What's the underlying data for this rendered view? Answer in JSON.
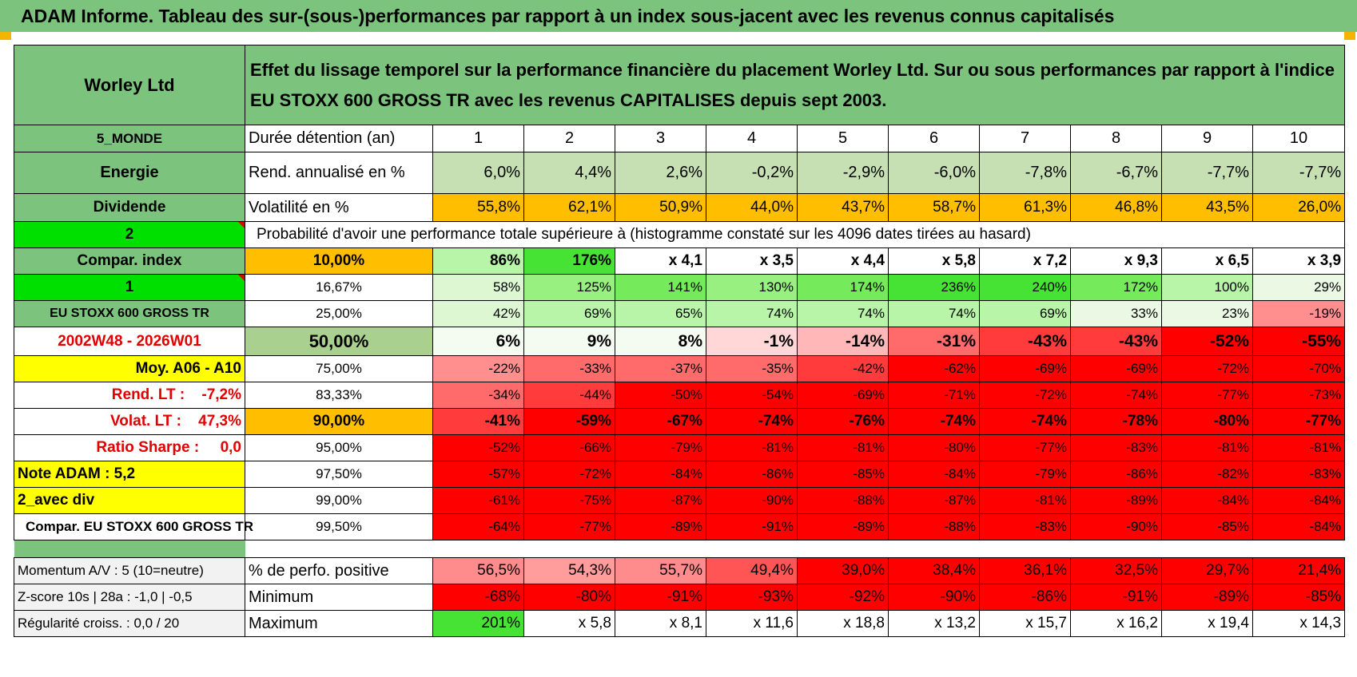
{
  "title": "ADAM Informe. Tableau des sur-(sous-)performances par rapport à un index sous-jacent avec les revenus connus capitalisés",
  "header": {
    "stock": "Worley Ltd",
    "description_line1": "Effet du lissage temporel sur la performance financière du placement Worley Ltd. Sur ou sous performances par rapport à l'indice",
    "description_line2": "EU STOXX 600 GROSS TR avec les revenus CAPITALISES depuis sept 2003."
  },
  "sidebar": {
    "region": "5_MONDE",
    "sector": "Energie",
    "type": "Dividende",
    "sel1": "2",
    "compar_label": "Compar. index",
    "sel2": "1",
    "index_name": "EU STOXX 600 GROSS TR",
    "period": "2002W48 - 2026W01",
    "moy": "Moy. A06 - A10",
    "rend_lt": "Rend. LT :    -7,2%",
    "volat_lt": "Volat. LT :    47,3%",
    "sharpe": "Ratio Sharpe :     0,0",
    "note": "Note ADAM : 5,2",
    "avec_div": "2_avec div",
    "compar_footer": "Compar. EU STOXX 600 GROSS TR"
  },
  "table": {
    "duration_label": "Durée détention (an)",
    "years": [
      "1",
      "2",
      "3",
      "4",
      "5",
      "6",
      "7",
      "8",
      "9",
      "10"
    ],
    "rend_label": "Rend. annualisé en %",
    "rend": [
      "6,0%",
      "4,4%",
      "2,6%",
      "-0,2%",
      "-2,9%",
      "-6,0%",
      "-7,8%",
      "-6,7%",
      "-7,7%",
      "-7,7%"
    ],
    "vol_label": "Volatilité en %",
    "vol": [
      "55,8%",
      "62,1%",
      "50,9%",
      "44,0%",
      "43,7%",
      "58,7%",
      "61,3%",
      "46,8%",
      "43,5%",
      "26,0%"
    ],
    "prob_label": "Probabilité d'avoir une performance totale supérieure à (histogramme constaté sur les 4096 dates tirées au hasard)",
    "quantiles": [
      {
        "p": "10,00%",
        "v": [
          "86%",
          "176%",
          "x 4,1",
          "x 3,5",
          "x 4,4",
          "x 5,8",
          "x 7,2",
          "x 9,3",
          "x 6,5",
          "x 3,9"
        ]
      },
      {
        "p": "16,67%",
        "v": [
          "58%",
          "125%",
          "141%",
          "130%",
          "174%",
          "236%",
          "240%",
          "172%",
          "100%",
          "29%"
        ]
      },
      {
        "p": "25,00%",
        "v": [
          "42%",
          "69%",
          "65%",
          "74%",
          "74%",
          "74%",
          "69%",
          "33%",
          "23%",
          "-19%"
        ]
      },
      {
        "p": "50,00%",
        "v": [
          "6%",
          "9%",
          "8%",
          "-1%",
          "-14%",
          "-31%",
          "-43%",
          "-43%",
          "-52%",
          "-55%"
        ]
      },
      {
        "p": "75,00%",
        "v": [
          "-22%",
          "-33%",
          "-37%",
          "-35%",
          "-42%",
          "-62%",
          "-69%",
          "-69%",
          "-72%",
          "-70%"
        ]
      },
      {
        "p": "83,33%",
        "v": [
          "-34%",
          "-44%",
          "-50%",
          "-54%",
          "-69%",
          "-71%",
          "-72%",
          "-74%",
          "-77%",
          "-73%"
        ]
      },
      {
        "p": "90,00%",
        "v": [
          "-41%",
          "-59%",
          "-67%",
          "-74%",
          "-76%",
          "-74%",
          "-74%",
          "-78%",
          "-80%",
          "-77%"
        ]
      },
      {
        "p": "95,00%",
        "v": [
          "-52%",
          "-66%",
          "-79%",
          "-81%",
          "-81%",
          "-80%",
          "-77%",
          "-83%",
          "-81%",
          "-81%"
        ]
      },
      {
        "p": "97,50%",
        "v": [
          "-57%",
          "-72%",
          "-84%",
          "-86%",
          "-85%",
          "-84%",
          "-79%",
          "-86%",
          "-82%",
          "-83%"
        ]
      },
      {
        "p": "99,00%",
        "v": [
          "-61%",
          "-75%",
          "-87%",
          "-90%",
          "-88%",
          "-87%",
          "-81%",
          "-89%",
          "-84%",
          "-84%"
        ]
      },
      {
        "p": "99,50%",
        "v": [
          "-64%",
          "-77%",
          "-89%",
          "-91%",
          "-89%",
          "-88%",
          "-83%",
          "-90%",
          "-85%",
          "-84%"
        ]
      }
    ],
    "footer": [
      {
        "left": "Momentum A/V : 5 (10=neutre)",
        "label": "% de perfo. positive",
        "v": [
          "56,5%",
          "54,3%",
          "55,7%",
          "49,4%",
          "39,0%",
          "38,4%",
          "36,1%",
          "32,5%",
          "29,7%",
          "21,4%"
        ]
      },
      {
        "left": "Z-score 10s | 28a : -1,0 | -0,5",
        "label": "Minimum",
        "v": [
          "-68%",
          "-80%",
          "-91%",
          "-93%",
          "-92%",
          "-90%",
          "-86%",
          "-91%",
          "-89%",
          "-85%"
        ]
      },
      {
        "left": "Régularité croiss. : 0,0 / 20",
        "label": "Maximum",
        "v": [
          "201%",
          "x 5,8",
          "x 8,1",
          "x 11,6",
          "x 18,8",
          "x 13,2",
          "x 15,7",
          "x 16,2",
          "x 19,4",
          "x 14,3"
        ]
      }
    ]
  },
  "colors": {
    "header_green": "#7cc47d",
    "light_green": "#c6e0b4",
    "bright_green": "#00e000",
    "orange": "#ffbf00",
    "yellow": "#ffff00",
    "red": "#ff0000",
    "text_red": "#e00000"
  }
}
